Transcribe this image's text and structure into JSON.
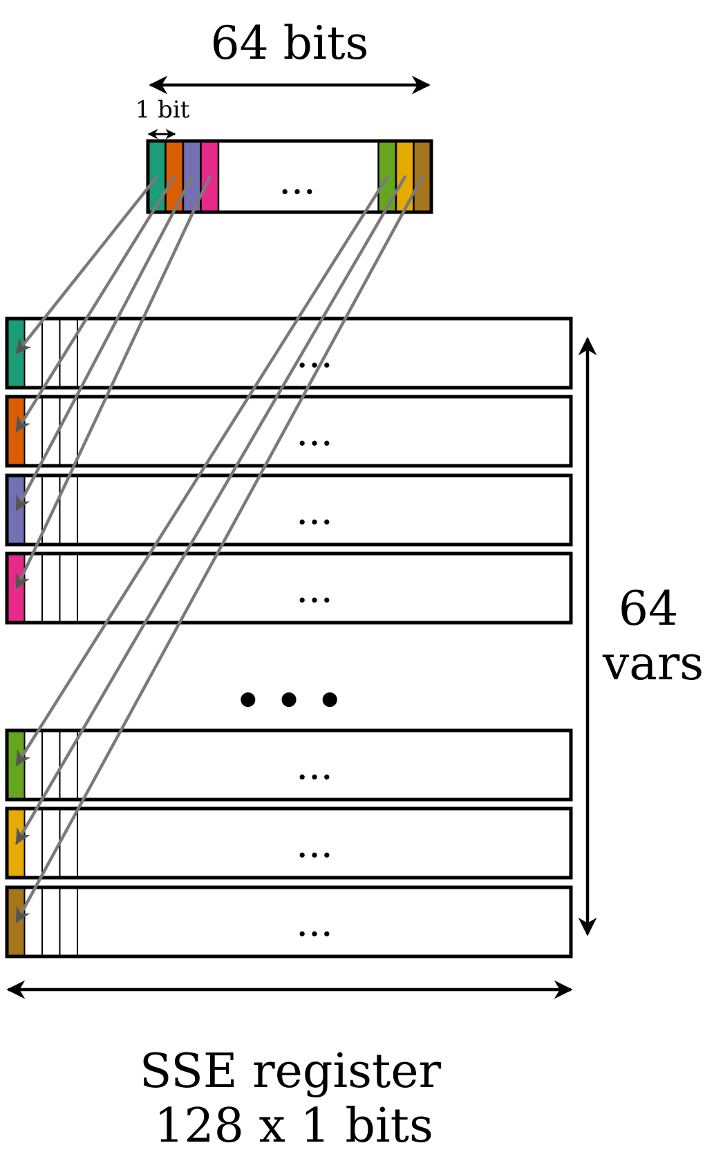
{
  "top_label": "64 bits",
  "bit_label": "1 bit",
  "word_ellipsis": "...",
  "row_ellipsis": "...",
  "gap_ellipsis": "• • •",
  "vars_label_line1": "64",
  "vars_label_line2": "vars",
  "register_label_line1": "SSE register",
  "register_label_line2": "128 x 1 bits",
  "colors": {
    "teal": "#1b9e77",
    "orange": "#d95f02",
    "purple": "#7570b3",
    "pink": "#e7298a",
    "green": "#66a61e",
    "yellow": "#e6ab02",
    "brown": "#a6761d",
    "wire": "#7a7a7a"
  },
  "word_bits_left": [
    "teal",
    "orange",
    "purple",
    "pink"
  ],
  "word_bits_right": [
    "green",
    "yellow",
    "brown"
  ],
  "registers": [
    {
      "color": "teal"
    },
    {
      "color": "orange"
    },
    {
      "color": "purple"
    },
    {
      "color": "pink"
    },
    {
      "color": "green"
    },
    {
      "color": "yellow"
    },
    {
      "color": "brown"
    }
  ]
}
